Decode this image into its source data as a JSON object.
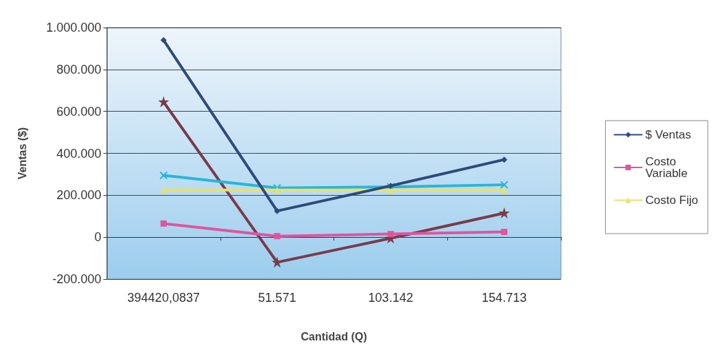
{
  "chart_data": {
    "type": "line",
    "xlabel": "Cantidad (Q)",
    "ylabel": "Ventas ($)",
    "categories": [
      "394420,0837",
      "51.571",
      "103.142",
      "154.713"
    ],
    "series": [
      {
        "name": "$ Ventas",
        "color": "#2e4a7a",
        "marker": "diamond",
        "values": [
          940000,
          125000,
          245000,
          370000
        ]
      },
      {
        "name": "Costo Variable",
        "color": "#e0559e",
        "marker": "square",
        "values": [
          65000,
          5000,
          15000,
          25000
        ]
      },
      {
        "name": "Costo Fijo",
        "color": "#e8e070",
        "marker": "triangle",
        "values": [
          225000,
          225000,
          225000,
          225000
        ]
      },
      {
        "color": "#29b5d8",
        "marker": "cross",
        "values": [
          295000,
          235000,
          240000,
          250000
        ]
      },
      {
        "color": "#7a3b4a",
        "marker": "star",
        "values": [
          645000,
          -120000,
          -5000,
          115000
        ]
      }
    ],
    "ylim": [
      -200000,
      1000000
    ],
    "yticks": [
      {
        "value": -200000,
        "label": "-200.000"
      },
      0,
      {
        "value": 200000,
        "label": "200.000"
      },
      {
        "value": 400000,
        "label": "400.000"
      },
      {
        "value": 600000,
        "label": "600.000"
      },
      {
        "value": 800000,
        "label": "800.000"
      },
      {
        "value": 1000000,
        "label": "1.000.000"
      }
    ],
    "grid": "y",
    "legend": "right",
    "line_style": "solid"
  }
}
